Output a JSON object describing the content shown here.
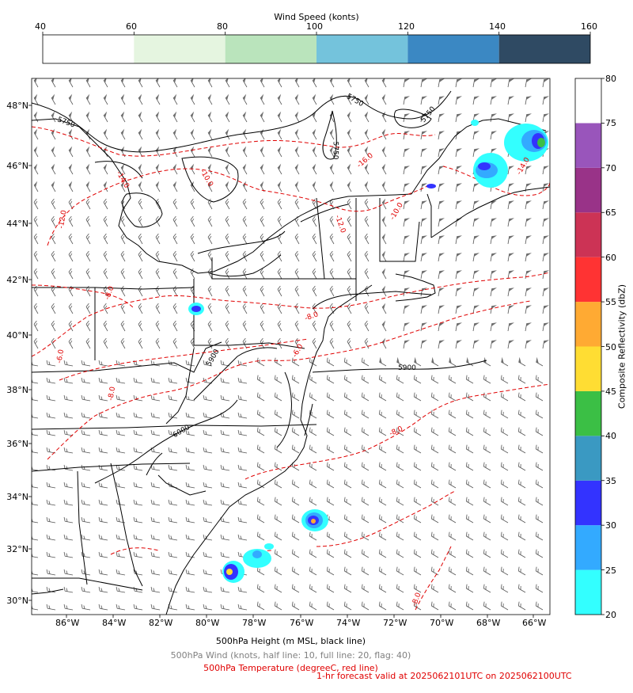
{
  "wind_colorbar": {
    "title": "Wind Speed (konts)",
    "ticks": [
      "40",
      "60",
      "80",
      "100",
      "120",
      "140",
      "160"
    ],
    "colors": [
      "#ffffff",
      "#e5f5e0",
      "#bae4bc",
      "#74c3dc",
      "#3b88c3",
      "#2f4a63"
    ]
  },
  "refl_colorbar": {
    "label": "Composite Reflectivity (dbZ)",
    "ticks": [
      "20",
      "25",
      "30",
      "35",
      "40",
      "45",
      "50",
      "55",
      "60",
      "65",
      "70",
      "75",
      "80"
    ],
    "colors": [
      "#33ffff",
      "#33aaff",
      "#3333ff",
      "#3a99c2",
      "#3bbf45",
      "#ffdd33",
      "#ffaa33",
      "#ff3333",
      "#cc3355",
      "#993388",
      "#9955bb",
      "#ffffff"
    ]
  },
  "map": {
    "lat_labels": [
      "48°N",
      "46°N",
      "44°N",
      "42°N",
      "40°N",
      "38°N",
      "36°N",
      "34°N",
      "32°N",
      "30°N"
    ],
    "lon_labels": [
      "86°W",
      "84°W",
      "82°W",
      "80°W",
      "78°W",
      "76°W",
      "74°W",
      "72°W",
      "70°W",
      "68°W",
      "66°W"
    ],
    "height_contour_labels": [
      "5750",
      "5750",
      "5750",
      "5750",
      "5900",
      "5900",
      "6000"
    ],
    "temp_contour_labels": [
      "-16.0",
      "-14.0",
      "-14.0",
      "-12.0",
      "-12.0",
      "-10.0",
      "-10.0",
      "-8.0",
      "-8.0",
      "-6.0",
      "-6.0",
      "-8.0",
      "-8.0",
      "-8.0"
    ]
  },
  "captions": {
    "height": "500hPa Height (m MSL, black line)",
    "wind": "500hPa Wind (knots, half line: 10, full line: 20, flag: 40)",
    "temp": "500hPa Temperature (degreeC, red line)",
    "forecast": "1-hr forecast valid at 2025062101UTC on 2025062100UTC"
  },
  "caption_colors": {
    "height": "#000000",
    "wind": "#808080",
    "temp": "#e00000",
    "forecast": "#e00000"
  }
}
